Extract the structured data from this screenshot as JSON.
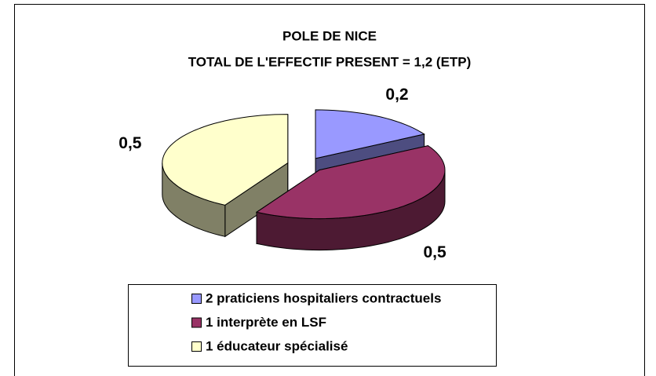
{
  "chart_data": {
    "type": "pie",
    "title": "POLE DE NICE",
    "subtitle": "TOTAL DE L'EFFECTIF PRESENT = 1,2 (ETP)",
    "categories": [
      "2 praticiens hospitaliers contractuels",
      "1 interprète en LSF",
      "1 éducateur spécialisé"
    ],
    "values": [
      0.2,
      0.5,
      0.5
    ],
    "value_labels": [
      "0,2",
      "0,5",
      "0,5"
    ],
    "colors": [
      "#9999ff",
      "#993366",
      "#ffffcc"
    ],
    "legend": "bottom"
  }
}
